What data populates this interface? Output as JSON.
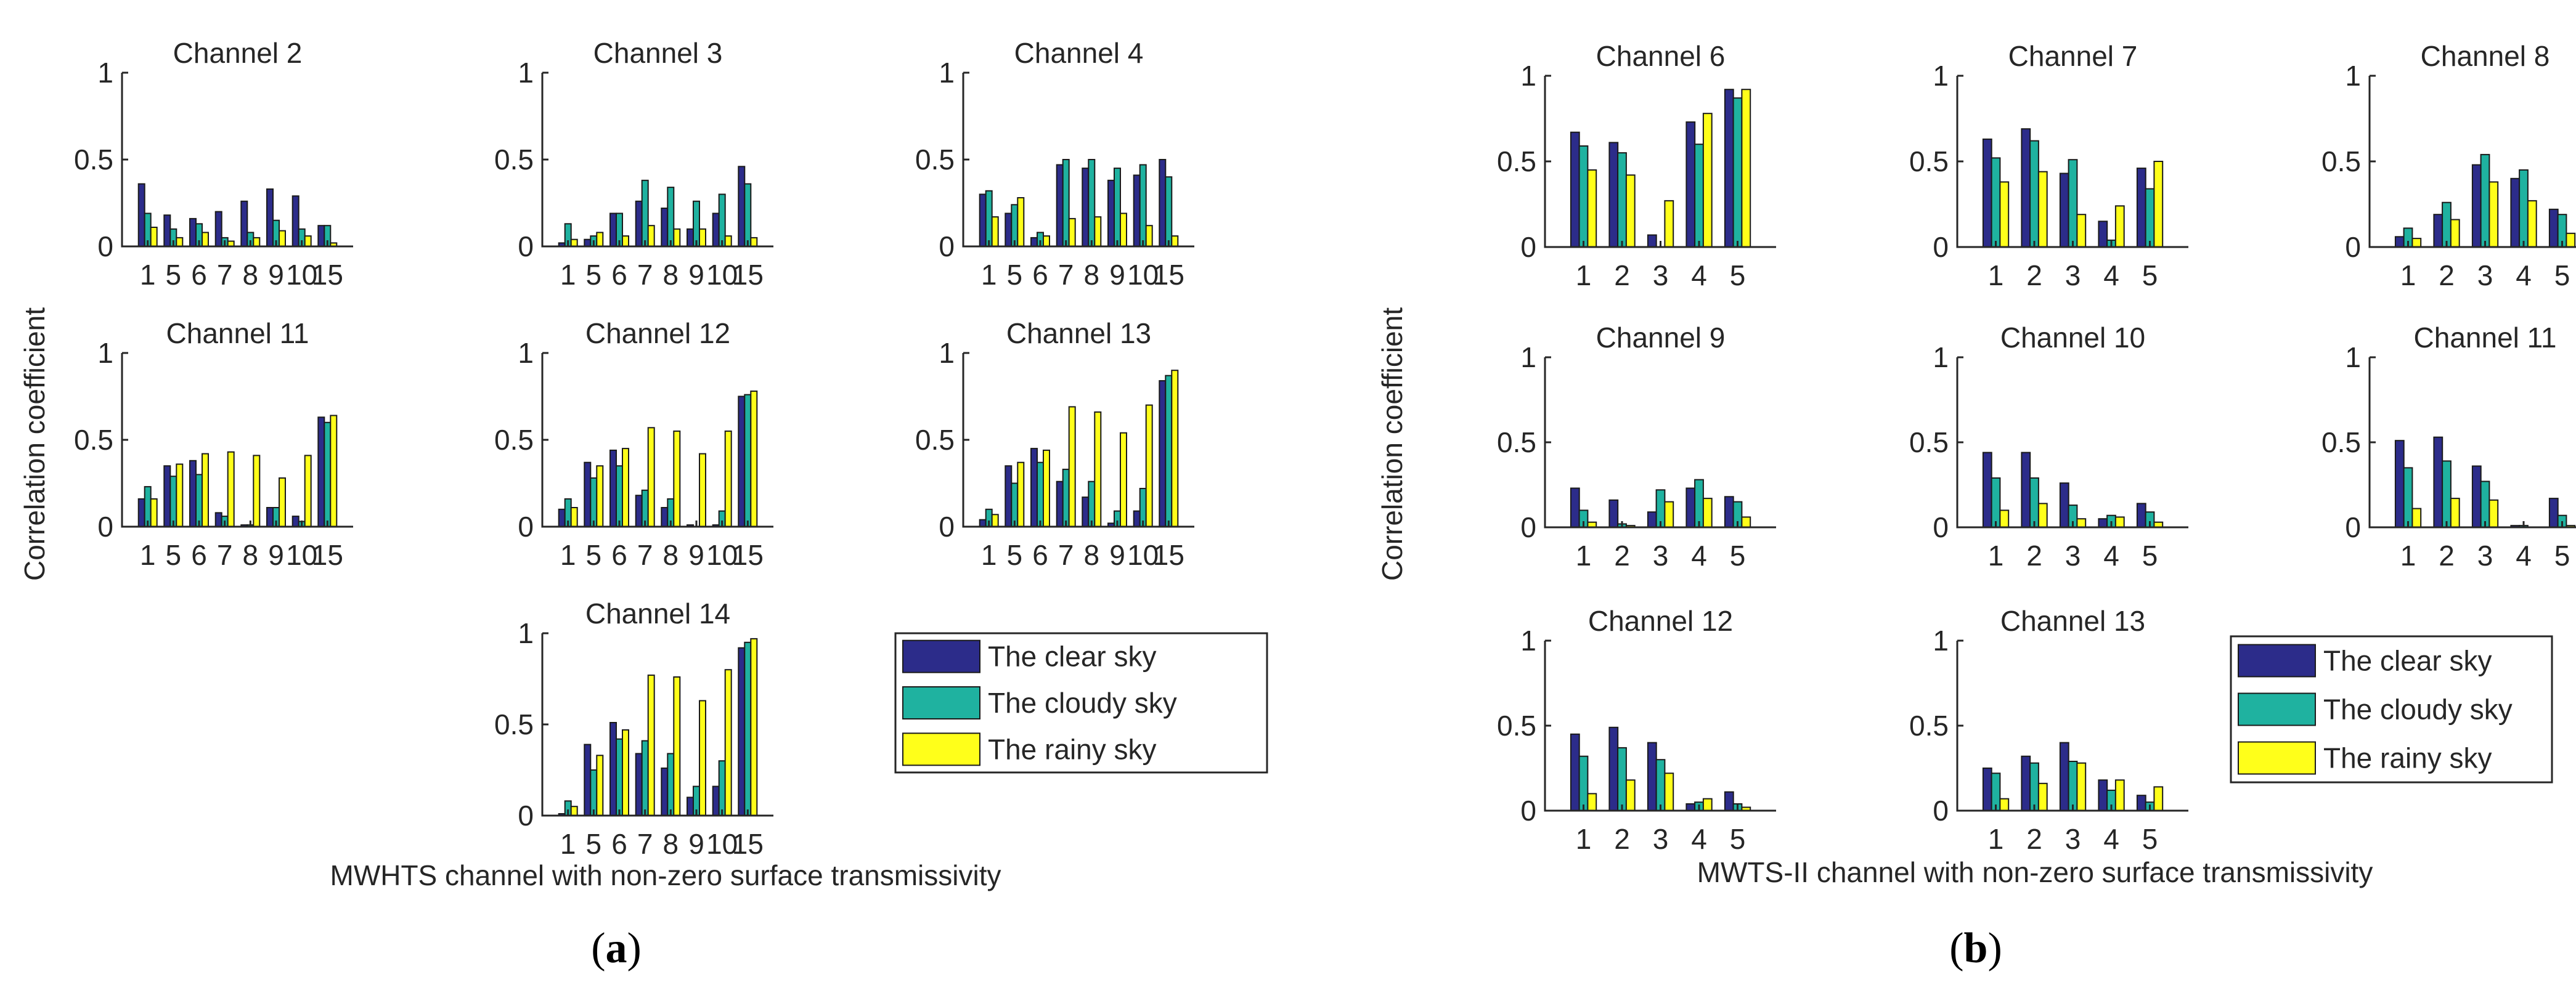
{
  "colors": {
    "clear": "#2c2c8a",
    "cloudy": "#1fb2a0",
    "rainy": "#ffff1a"
  },
  "chart_data": [
    {
      "type": "bar",
      "figure": "a",
      "sublabel": "(a)",
      "ylabel": "Correlation coefficient",
      "xlabel": "MWHTS channel with non-zero surface transmissivity",
      "legend": [
        "The clear sky",
        "The cloudy sky",
        "The rainy sky"
      ],
      "ylim": [
        0,
        1
      ],
      "yticks": [
        "0",
        "0.5",
        "1"
      ],
      "panels": [
        {
          "title": "Channel 2",
          "categories": [
            "1",
            "5",
            "6",
            "7",
            "8",
            "9",
            "10",
            "15"
          ],
          "series": [
            {
              "name": "The clear sky",
              "values": [
                0.36,
                0.18,
                0.16,
                0.2,
                0.26,
                0.33,
                0.29,
                0.12
              ]
            },
            {
              "name": "The cloudy sky",
              "values": [
                0.19,
                0.1,
                0.13,
                0.05,
                0.08,
                0.15,
                0.1,
                0.12
              ]
            },
            {
              "name": "The rainy sky",
              "values": [
                0.11,
                0.05,
                0.08,
                0.03,
                0.05,
                0.09,
                0.06,
                0.02
              ]
            }
          ]
        },
        {
          "title": "Channel 3",
          "categories": [
            "1",
            "5",
            "6",
            "7",
            "8",
            "9",
            "10",
            "15"
          ],
          "series": [
            {
              "name": "The clear sky",
              "values": [
                0.02,
                0.04,
                0.19,
                0.26,
                0.22,
                0.1,
                0.19,
                0.46
              ]
            },
            {
              "name": "The cloudy sky",
              "values": [
                0.13,
                0.06,
                0.19,
                0.38,
                0.34,
                0.26,
                0.3,
                0.36
              ]
            },
            {
              "name": "The rainy sky",
              "values": [
                0.04,
                0.08,
                0.06,
                0.12,
                0.1,
                0.1,
                0.06,
                0.05
              ]
            }
          ]
        },
        {
          "title": "Channel 4",
          "categories": [
            "1",
            "5",
            "6",
            "7",
            "8",
            "9",
            "10",
            "15"
          ],
          "series": [
            {
              "name": "The clear sky",
              "values": [
                0.3,
                0.19,
                0.05,
                0.47,
                0.45,
                0.38,
                0.41,
                0.5
              ]
            },
            {
              "name": "The cloudy sky",
              "values": [
                0.32,
                0.24,
                0.08,
                0.5,
                0.5,
                0.45,
                0.47,
                0.4
              ]
            },
            {
              "name": "The rainy sky",
              "values": [
                0.17,
                0.28,
                0.06,
                0.16,
                0.17,
                0.19,
                0.12,
                0.06
              ]
            }
          ]
        },
        {
          "title": "Channel 11",
          "categories": [
            "1",
            "5",
            "6",
            "7",
            "8",
            "9",
            "10",
            "15"
          ],
          "series": [
            {
              "name": "The clear sky",
              "values": [
                0.16,
                0.35,
                0.38,
                0.08,
                0.01,
                0.11,
                0.06,
                0.63
              ]
            },
            {
              "name": "The cloudy sky",
              "values": [
                0.23,
                0.29,
                0.3,
                0.06,
                0.01,
                0.11,
                0.03,
                0.6
              ]
            },
            {
              "name": "The rainy sky",
              "values": [
                0.16,
                0.36,
                0.42,
                0.43,
                0.41,
                0.28,
                0.41,
                0.64
              ]
            }
          ]
        },
        {
          "title": "Channel 12",
          "categories": [
            "1",
            "5",
            "6",
            "7",
            "8",
            "9",
            "10",
            "15"
          ],
          "series": [
            {
              "name": "The clear sky",
              "values": [
                0.1,
                0.37,
                0.44,
                0.18,
                0.11,
                0.01,
                0.01,
                0.75
              ]
            },
            {
              "name": "The cloudy sky",
              "values": [
                0.16,
                0.28,
                0.35,
                0.21,
                0.16,
                0.0,
                0.09,
                0.76
              ]
            },
            {
              "name": "The rainy sky",
              "values": [
                0.11,
                0.35,
                0.45,
                0.57,
                0.55,
                0.42,
                0.55,
                0.78
              ]
            }
          ]
        },
        {
          "title": "Channel 13",
          "categories": [
            "1",
            "5",
            "6",
            "7",
            "8",
            "9",
            "10",
            "15"
          ],
          "series": [
            {
              "name": "The clear sky",
              "values": [
                0.04,
                0.35,
                0.45,
                0.26,
                0.17,
                0.02,
                0.09,
                0.84
              ]
            },
            {
              "name": "The cloudy sky",
              "values": [
                0.1,
                0.25,
                0.37,
                0.33,
                0.26,
                0.09,
                0.22,
                0.87
              ]
            },
            {
              "name": "The rainy sky",
              "values": [
                0.07,
                0.37,
                0.44,
                0.69,
                0.66,
                0.54,
                0.7,
                0.9
              ]
            }
          ]
        },
        {
          "title": "Channel 14",
          "categories": [
            "1",
            "5",
            "6",
            "7",
            "8",
            "9",
            "10",
            "15"
          ],
          "series": [
            {
              "name": "The clear sky",
              "values": [
                0.01,
                0.39,
                0.51,
                0.34,
                0.26,
                0.1,
                0.16,
                0.92
              ]
            },
            {
              "name": "The cloudy sky",
              "values": [
                0.08,
                0.25,
                0.42,
                0.41,
                0.34,
                0.16,
                0.3,
                0.95
              ]
            },
            {
              "name": "The rainy sky",
              "values": [
                0.05,
                0.33,
                0.47,
                0.77,
                0.76,
                0.63,
                0.8,
                0.97
              ]
            }
          ]
        }
      ]
    },
    {
      "type": "bar",
      "figure": "b",
      "sublabel": "(b)",
      "ylabel": "Correlation coefficient",
      "xlabel": "MWTS-II channel with non-zero surface transmissivity",
      "legend": [
        "The clear sky",
        "The cloudy sky",
        "The rainy sky"
      ],
      "ylim": [
        0,
        1
      ],
      "yticks": [
        "0",
        "0.5",
        "1"
      ],
      "panels": [
        {
          "title": "Channel 6",
          "categories": [
            "1",
            "2",
            "3",
            "4",
            "5"
          ],
          "series": [
            {
              "name": "The clear sky",
              "values": [
                0.67,
                0.61,
                0.07,
                0.73,
                0.92
              ]
            },
            {
              "name": "The cloudy sky",
              "values": [
                0.59,
                0.55,
                0.0,
                0.6,
                0.87
              ]
            },
            {
              "name": "The rainy sky",
              "values": [
                0.45,
                0.42,
                0.27,
                0.78,
                0.92
              ]
            }
          ]
        },
        {
          "title": "Channel 7",
          "categories": [
            "1",
            "2",
            "3",
            "4",
            "5"
          ],
          "series": [
            {
              "name": "The clear sky",
              "values": [
                0.63,
                0.69,
                0.43,
                0.15,
                0.46
              ]
            },
            {
              "name": "The cloudy sky",
              "values": [
                0.52,
                0.62,
                0.51,
                0.04,
                0.34
              ]
            },
            {
              "name": "The rainy sky",
              "values": [
                0.38,
                0.44,
                0.19,
                0.24,
                0.5
              ]
            }
          ]
        },
        {
          "title": "Channel 8",
          "categories": [
            "1",
            "2",
            "3",
            "4",
            "5"
          ],
          "series": [
            {
              "name": "The clear sky",
              "values": [
                0.06,
                0.19,
                0.48,
                0.4,
                0.22
              ]
            },
            {
              "name": "The cloudy sky",
              "values": [
                0.11,
                0.26,
                0.54,
                0.45,
                0.19
              ]
            },
            {
              "name": "The rainy sky",
              "values": [
                0.05,
                0.16,
                0.38,
                0.27,
                0.08
              ]
            }
          ]
        },
        {
          "title": "Channel 9",
          "categories": [
            "1",
            "2",
            "3",
            "4",
            "5"
          ],
          "series": [
            {
              "name": "The clear sky",
              "values": [
                0.23,
                0.16,
                0.09,
                0.23,
                0.18
              ]
            },
            {
              "name": "The cloudy sky",
              "values": [
                0.1,
                0.02,
                0.22,
                0.28,
                0.15
              ]
            },
            {
              "name": "The rainy sky",
              "values": [
                0.03,
                0.01,
                0.15,
                0.17,
                0.06
              ]
            }
          ]
        },
        {
          "title": "Channel 10",
          "categories": [
            "1",
            "2",
            "3",
            "4",
            "5"
          ],
          "series": [
            {
              "name": "The clear sky",
              "values": [
                0.44,
                0.44,
                0.26,
                0.05,
                0.14
              ]
            },
            {
              "name": "The cloudy sky",
              "values": [
                0.29,
                0.29,
                0.13,
                0.07,
                0.09
              ]
            },
            {
              "name": "The rainy sky",
              "values": [
                0.1,
                0.14,
                0.05,
                0.06,
                0.03
              ]
            }
          ]
        },
        {
          "title": "Channel 11",
          "categories": [
            "1",
            "2",
            "3",
            "4",
            "5"
          ],
          "series": [
            {
              "name": "The clear sky",
              "values": [
                0.51,
                0.53,
                0.36,
                0.01,
                0.17
              ]
            },
            {
              "name": "The cloudy sky",
              "values": [
                0.35,
                0.39,
                0.27,
                0.01,
                0.07
              ]
            },
            {
              "name": "The rainy sky",
              "values": [
                0.11,
                0.17,
                0.16,
                0.0,
                0.01
              ]
            }
          ]
        },
        {
          "title": "Channel 12",
          "categories": [
            "1",
            "2",
            "3",
            "4",
            "5"
          ],
          "series": [
            {
              "name": "The clear sky",
              "values": [
                0.45,
                0.49,
                0.4,
                0.04,
                0.11
              ]
            },
            {
              "name": "The cloudy sky",
              "values": [
                0.32,
                0.37,
                0.3,
                0.05,
                0.04
              ]
            },
            {
              "name": "The rainy sky",
              "values": [
                0.1,
                0.18,
                0.22,
                0.07,
                0.02
              ]
            }
          ]
        },
        {
          "title": "Channel 13",
          "categories": [
            "1",
            "2",
            "3",
            "4",
            "5"
          ],
          "series": [
            {
              "name": "The clear sky",
              "values": [
                0.25,
                0.32,
                0.4,
                0.18,
                0.09
              ]
            },
            {
              "name": "The cloudy sky",
              "values": [
                0.22,
                0.28,
                0.29,
                0.12,
                0.05
              ]
            },
            {
              "name": "The rainy sky",
              "values": [
                0.07,
                0.16,
                0.28,
                0.18,
                0.14
              ]
            }
          ]
        }
      ]
    }
  ]
}
